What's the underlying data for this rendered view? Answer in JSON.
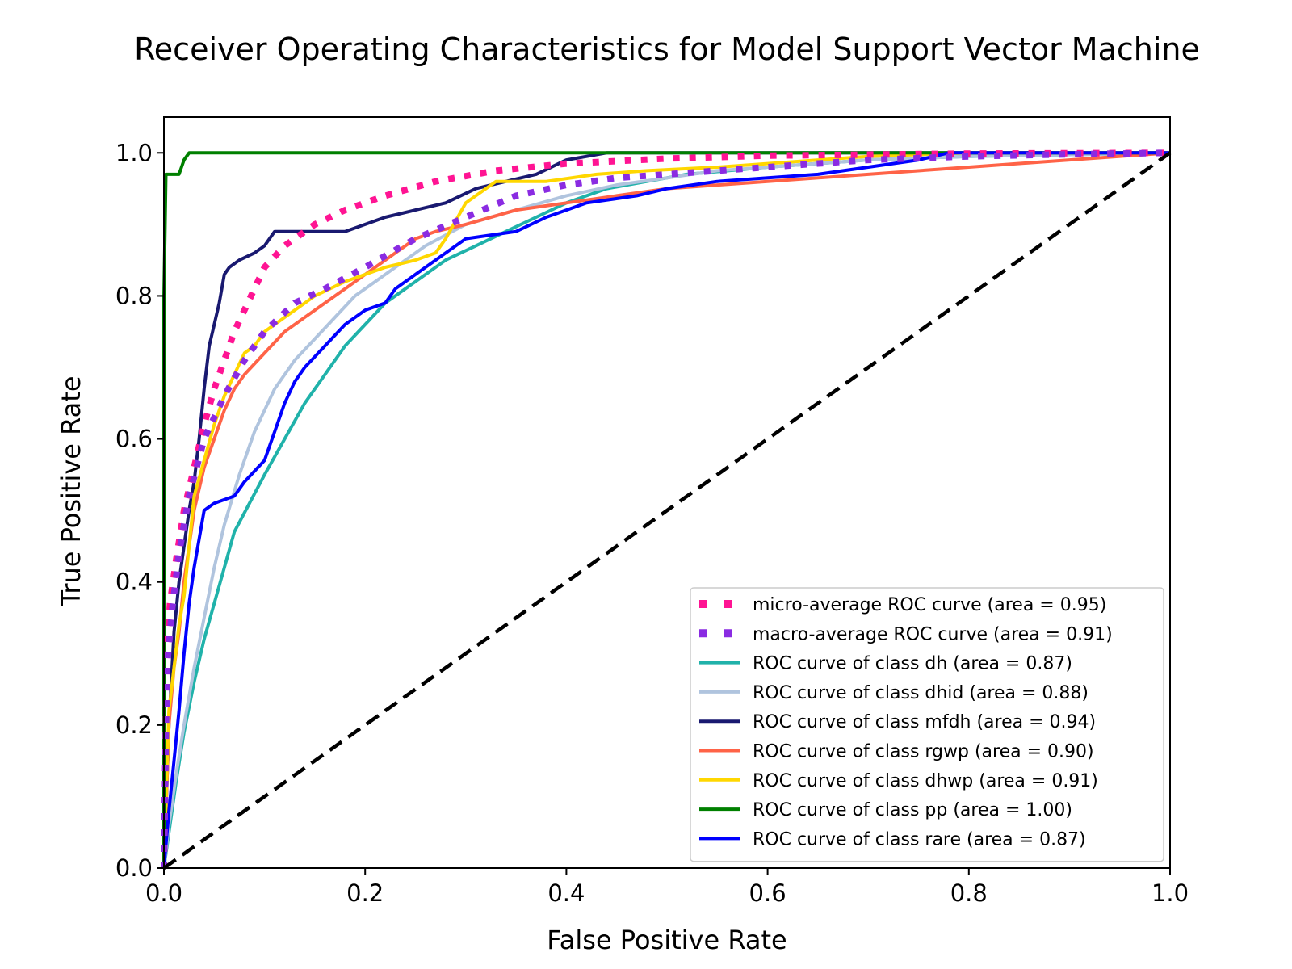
{
  "chart_data": {
    "type": "line",
    "title": "Receiver Operating Characteristics for Model Support Vector Machine",
    "xlabel": "False Positive Rate",
    "ylabel": "True Positive Rate",
    "xlim": [
      0.0,
      1.0
    ],
    "ylim": [
      0.0,
      1.05
    ],
    "xticks": [
      "0.0",
      "0.2",
      "0.4",
      "0.6",
      "0.8",
      "1.0"
    ],
    "yticks": [
      "0.0",
      "0.2",
      "0.4",
      "0.6",
      "0.8",
      "1.0"
    ],
    "grid": false,
    "legend_position": "lower-right",
    "series": [
      {
        "name": "micro-average ROC curve (area = 0.95)",
        "color": "#ff1493",
        "style": "dotted",
        "points": [
          [
            0,
            0
          ],
          [
            0.003,
            0.3
          ],
          [
            0.006,
            0.37
          ],
          [
            0.012,
            0.43
          ],
          [
            0.02,
            0.5
          ],
          [
            0.03,
            0.56
          ],
          [
            0.04,
            0.62
          ],
          [
            0.05,
            0.67
          ],
          [
            0.06,
            0.71
          ],
          [
            0.07,
            0.75
          ],
          [
            0.08,
            0.78
          ],
          [
            0.09,
            0.81
          ],
          [
            0.1,
            0.84
          ],
          [
            0.12,
            0.87
          ],
          [
            0.15,
            0.9
          ],
          [
            0.18,
            0.92
          ],
          [
            0.22,
            0.94
          ],
          [
            0.27,
            0.96
          ],
          [
            0.33,
            0.975
          ],
          [
            0.4,
            0.985
          ],
          [
            0.5,
            0.992
          ],
          [
            0.6,
            0.996
          ],
          [
            0.8,
            0.999
          ],
          [
            1.0,
            1.0
          ]
        ]
      },
      {
        "name": "macro-average ROC curve (area = 0.91)",
        "color": "#8a2be2",
        "style": "dotted",
        "points": [
          [
            0,
            0
          ],
          [
            0.003,
            0.28
          ],
          [
            0.008,
            0.36
          ],
          [
            0.015,
            0.44
          ],
          [
            0.025,
            0.52
          ],
          [
            0.04,
            0.6
          ],
          [
            0.06,
            0.66
          ],
          [
            0.08,
            0.71
          ],
          [
            0.1,
            0.75
          ],
          [
            0.13,
            0.79
          ],
          [
            0.16,
            0.81
          ],
          [
            0.2,
            0.84
          ],
          [
            0.25,
            0.88
          ],
          [
            0.3,
            0.91
          ],
          [
            0.35,
            0.94
          ],
          [
            0.4,
            0.955
          ],
          [
            0.45,
            0.965
          ],
          [
            0.5,
            0.97
          ],
          [
            0.55,
            0.975
          ],
          [
            0.6,
            0.98
          ],
          [
            0.7,
            0.99
          ],
          [
            0.8,
            0.995
          ],
          [
            0.9,
            0.998
          ],
          [
            1.0,
            1.0
          ]
        ]
      },
      {
        "name": "ROC curve of class dh (area = 0.87)",
        "color": "#20b2aa",
        "style": "solid",
        "points": [
          [
            0,
            0
          ],
          [
            0.005,
            0.05
          ],
          [
            0.012,
            0.12
          ],
          [
            0.02,
            0.19
          ],
          [
            0.03,
            0.26
          ],
          [
            0.04,
            0.32
          ],
          [
            0.05,
            0.37
          ],
          [
            0.06,
            0.42
          ],
          [
            0.07,
            0.47
          ],
          [
            0.085,
            0.51
          ],
          [
            0.1,
            0.55
          ],
          [
            0.12,
            0.6
          ],
          [
            0.14,
            0.65
          ],
          [
            0.16,
            0.69
          ],
          [
            0.18,
            0.73
          ],
          [
            0.2,
            0.76
          ],
          [
            0.22,
            0.79
          ],
          [
            0.25,
            0.82
          ],
          [
            0.28,
            0.85
          ],
          [
            0.31,
            0.87
          ],
          [
            0.34,
            0.89
          ],
          [
            0.37,
            0.91
          ],
          [
            0.4,
            0.93
          ],
          [
            0.44,
            0.95
          ],
          [
            0.48,
            0.96
          ],
          [
            0.52,
            0.97
          ],
          [
            0.6,
            0.98
          ],
          [
            0.7,
            0.99
          ],
          [
            0.8,
            0.995
          ],
          [
            1.0,
            1.0
          ]
        ]
      },
      {
        "name": "ROC curve of class dhid (area = 0.88)",
        "color": "#b0c4de",
        "style": "solid",
        "points": [
          [
            0,
            0
          ],
          [
            0.005,
            0.06
          ],
          [
            0.012,
            0.13
          ],
          [
            0.02,
            0.2
          ],
          [
            0.03,
            0.28
          ],
          [
            0.04,
            0.35
          ],
          [
            0.05,
            0.42
          ],
          [
            0.06,
            0.48
          ],
          [
            0.075,
            0.55
          ],
          [
            0.09,
            0.61
          ],
          [
            0.11,
            0.67
          ],
          [
            0.13,
            0.71
          ],
          [
            0.15,
            0.74
          ],
          [
            0.17,
            0.77
          ],
          [
            0.19,
            0.8
          ],
          [
            0.21,
            0.82
          ],
          [
            0.23,
            0.84
          ],
          [
            0.26,
            0.87
          ],
          [
            0.3,
            0.9
          ],
          [
            0.35,
            0.92
          ],
          [
            0.4,
            0.94
          ],
          [
            0.45,
            0.955
          ],
          [
            0.5,
            0.965
          ],
          [
            0.55,
            0.975
          ],
          [
            0.6,
            0.98
          ],
          [
            0.7,
            0.99
          ],
          [
            0.8,
            0.995
          ],
          [
            1.0,
            1.0
          ]
        ]
      },
      {
        "name": "ROC curve of class mfdh (area = 0.94)",
        "color": "#191970",
        "style": "solid",
        "points": [
          [
            0,
            0
          ],
          [
            0.005,
            0.2
          ],
          [
            0.01,
            0.33
          ],
          [
            0.015,
            0.4
          ],
          [
            0.02,
            0.45
          ],
          [
            0.025,
            0.5
          ],
          [
            0.03,
            0.54
          ],
          [
            0.035,
            0.6
          ],
          [
            0.04,
            0.67
          ],
          [
            0.045,
            0.73
          ],
          [
            0.05,
            0.76
          ],
          [
            0.055,
            0.79
          ],
          [
            0.06,
            0.83
          ],
          [
            0.065,
            0.84
          ],
          [
            0.075,
            0.85
          ],
          [
            0.09,
            0.86
          ],
          [
            0.1,
            0.87
          ],
          [
            0.11,
            0.89
          ],
          [
            0.14,
            0.89
          ],
          [
            0.18,
            0.89
          ],
          [
            0.2,
            0.9
          ],
          [
            0.22,
            0.91
          ],
          [
            0.25,
            0.92
          ],
          [
            0.28,
            0.93
          ],
          [
            0.31,
            0.95
          ],
          [
            0.34,
            0.96
          ],
          [
            0.37,
            0.97
          ],
          [
            0.4,
            0.99
          ],
          [
            0.44,
            1.0
          ],
          [
            1.0,
            1.0
          ]
        ]
      },
      {
        "name": "ROC curve of class rgwp (area = 0.90)",
        "color": "#ff6347",
        "style": "solid",
        "points": [
          [
            0,
            0
          ],
          [
            0.005,
            0.2
          ],
          [
            0.01,
            0.28
          ],
          [
            0.015,
            0.33
          ],
          [
            0.02,
            0.4
          ],
          [
            0.025,
            0.45
          ],
          [
            0.03,
            0.5
          ],
          [
            0.035,
            0.53
          ],
          [
            0.04,
            0.56
          ],
          [
            0.05,
            0.6
          ],
          [
            0.06,
            0.64
          ],
          [
            0.07,
            0.67
          ],
          [
            0.08,
            0.69
          ],
          [
            0.1,
            0.72
          ],
          [
            0.12,
            0.75
          ],
          [
            0.15,
            0.78
          ],
          [
            0.18,
            0.81
          ],
          [
            0.21,
            0.84
          ],
          [
            0.23,
            0.86
          ],
          [
            0.25,
            0.88
          ],
          [
            0.27,
            0.89
          ],
          [
            0.3,
            0.9
          ],
          [
            0.35,
            0.92
          ],
          [
            0.4,
            0.93
          ],
          [
            0.45,
            0.94
          ],
          [
            0.5,
            0.95
          ],
          [
            0.6,
            0.96
          ],
          [
            0.7,
            0.97
          ],
          [
            0.8,
            0.98
          ],
          [
            0.9,
            0.99
          ],
          [
            1.0,
            1.0
          ]
        ]
      },
      {
        "name": "ROC curve of class dhwp (area = 0.91)",
        "color": "#ffd700",
        "style": "solid",
        "points": [
          [
            0,
            0
          ],
          [
            0.005,
            0.22
          ],
          [
            0.01,
            0.28
          ],
          [
            0.015,
            0.34
          ],
          [
            0.02,
            0.38
          ],
          [
            0.025,
            0.45
          ],
          [
            0.03,
            0.52
          ],
          [
            0.04,
            0.57
          ],
          [
            0.05,
            0.62
          ],
          [
            0.06,
            0.66
          ],
          [
            0.07,
            0.69
          ],
          [
            0.08,
            0.72
          ],
          [
            0.09,
            0.73
          ],
          [
            0.1,
            0.75
          ],
          [
            0.12,
            0.77
          ],
          [
            0.15,
            0.8
          ],
          [
            0.18,
            0.82
          ],
          [
            0.2,
            0.83
          ],
          [
            0.22,
            0.84
          ],
          [
            0.25,
            0.85
          ],
          [
            0.27,
            0.86
          ],
          [
            0.28,
            0.88
          ],
          [
            0.3,
            0.93
          ],
          [
            0.33,
            0.96
          ],
          [
            0.38,
            0.96
          ],
          [
            0.43,
            0.97
          ],
          [
            0.48,
            0.975
          ],
          [
            0.55,
            0.98
          ],
          [
            0.6,
            0.985
          ],
          [
            0.7,
            0.995
          ],
          [
            0.8,
            1.0
          ],
          [
            1.0,
            1.0
          ]
        ]
      },
      {
        "name": "ROC curve of class pp (area = 1.00)",
        "color": "#008000",
        "style": "solid",
        "points": [
          [
            0,
            0
          ],
          [
            0,
            0.8
          ],
          [
            0.002,
            0.97
          ],
          [
            0.015,
            0.97
          ],
          [
            0.02,
            0.99
          ],
          [
            0.025,
            1.0
          ],
          [
            1.0,
            1.0
          ]
        ]
      },
      {
        "name": "ROC curve of class rare (area = 0.87)",
        "color": "#0000ff",
        "style": "solid",
        "points": [
          [
            0,
            0
          ],
          [
            0.005,
            0.08
          ],
          [
            0.01,
            0.15
          ],
          [
            0.015,
            0.22
          ],
          [
            0.02,
            0.3
          ],
          [
            0.025,
            0.37
          ],
          [
            0.03,
            0.42
          ],
          [
            0.035,
            0.46
          ],
          [
            0.04,
            0.5
          ],
          [
            0.05,
            0.51
          ],
          [
            0.07,
            0.52
          ],
          [
            0.08,
            0.54
          ],
          [
            0.1,
            0.57
          ],
          [
            0.11,
            0.61
          ],
          [
            0.12,
            0.65
          ],
          [
            0.13,
            0.68
          ],
          [
            0.14,
            0.7
          ],
          [
            0.16,
            0.73
          ],
          [
            0.18,
            0.76
          ],
          [
            0.2,
            0.78
          ],
          [
            0.22,
            0.79
          ],
          [
            0.23,
            0.81
          ],
          [
            0.25,
            0.83
          ],
          [
            0.28,
            0.86
          ],
          [
            0.3,
            0.88
          ],
          [
            0.35,
            0.89
          ],
          [
            0.38,
            0.91
          ],
          [
            0.42,
            0.93
          ],
          [
            0.47,
            0.94
          ],
          [
            0.5,
            0.95
          ],
          [
            0.55,
            0.96
          ],
          [
            0.65,
            0.97
          ],
          [
            0.7,
            0.98
          ],
          [
            0.75,
            0.99
          ],
          [
            0.78,
            1.0
          ],
          [
            1.0,
            1.0
          ]
        ]
      },
      {
        "name": "",
        "color": "#000000",
        "style": "dashed",
        "points": [
          [
            0,
            0
          ],
          [
            1,
            1
          ]
        ]
      }
    ]
  }
}
